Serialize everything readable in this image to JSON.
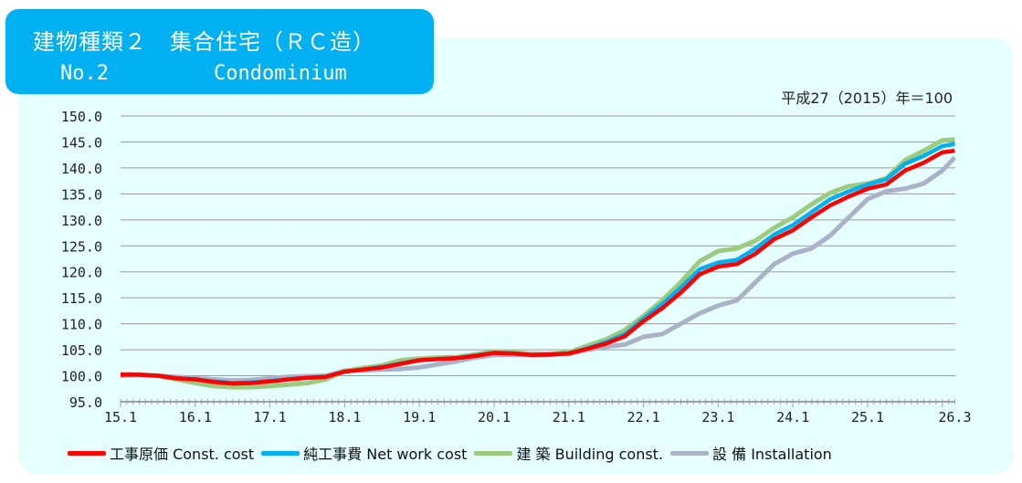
{
  "header": {
    "title_jp": "建物種類２　集合住宅（ＲＣ造）",
    "number": "No.2",
    "title_en": "Condominium"
  },
  "base_note": "平成27（2015）年＝100",
  "chart_data": {
    "type": "line",
    "ylim": [
      95,
      150
    ],
    "yticks": [
      "150.0",
      "145.0",
      "140.0",
      "135.0",
      "130.0",
      "125.0",
      "120.0",
      "115.0",
      "110.0",
      "105.0",
      "100.0",
      "95.0"
    ],
    "xticks": [
      "15.1",
      "16.1",
      "17.1",
      "18.1",
      "19.1",
      "20.1",
      "21.1",
      "22.1",
      "23.1",
      "24.1",
      "25.1",
      "26.3"
    ],
    "grid": true,
    "legend_position": "bottom",
    "x": [
      "15.1",
      "15.4",
      "15.7",
      "15.10",
      "16.1",
      "16.4",
      "16.7",
      "16.10",
      "17.1",
      "17.4",
      "17.7",
      "17.10",
      "18.1",
      "18.4",
      "18.7",
      "18.10",
      "19.1",
      "19.4",
      "19.7",
      "19.10",
      "20.1",
      "20.4",
      "20.7",
      "20.10",
      "21.1",
      "21.4",
      "21.7",
      "21.10",
      "22.1",
      "22.4",
      "22.7",
      "22.10",
      "23.1",
      "23.4",
      "23.7",
      "23.10",
      "24.1",
      "24.4",
      "24.7",
      "24.10",
      "25.1",
      "25.4",
      "25.7",
      "25.10",
      "26.1",
      "26.3"
    ],
    "series": [
      {
        "name": "工事原価 Const. cost",
        "color": "#FF0000",
        "values": [
          100.2,
          100.2,
          100,
          99.5,
          99.3,
          98.8,
          98.5,
          98.6,
          98.9,
          99.3,
          99.6,
          99.8,
          100.8,
          101.2,
          101.6,
          102.3,
          103,
          103.2,
          103.4,
          103.8,
          104.4,
          104.3,
          104,
          104.1,
          104.3,
          105.2,
          106.2,
          107.6,
          110.5,
          113,
          116,
          119.5,
          121,
          121.5,
          123.5,
          126.3,
          128,
          130.5,
          132.8,
          134.5,
          136,
          136.8,
          139.5,
          141,
          143,
          143.3
        ]
      },
      {
        "name": "純工事費 Net work cost",
        "color": "#00B0F0",
        "values": [
          100.2,
          100.2,
          100,
          99.5,
          99.3,
          98.9,
          98.6,
          98.7,
          99,
          99.3,
          99.6,
          99.8,
          100.8,
          101.2,
          101.7,
          102.4,
          103,
          103.2,
          103.4,
          103.9,
          104.4,
          104.3,
          104,
          104.1,
          104.3,
          105.3,
          106.5,
          108,
          111,
          113.8,
          117,
          120.5,
          121.8,
          122.3,
          124.5,
          127.2,
          129,
          131.5,
          134,
          135.5,
          136.8,
          137.8,
          140.8,
          142.3,
          144.2,
          144.6
        ]
      },
      {
        "name": "建 築 Building const.",
        "color": "#9BCB7D",
        "values": [
          100.3,
          100.2,
          100,
          99.3,
          98.6,
          98,
          97.8,
          97.8,
          98,
          98.3,
          98.6,
          99.3,
          100.9,
          101.5,
          102,
          103,
          103.3,
          103.5,
          103.6,
          104.1,
          104.7,
          104.5,
          104.2,
          104.2,
          104.5,
          105.8,
          107,
          108.8,
          111.5,
          114.5,
          118,
          122,
          124,
          124.5,
          126,
          128.5,
          130.5,
          133,
          135.2,
          136.5,
          137,
          138,
          141.5,
          143.3,
          145.3,
          145.5
        ]
      },
      {
        "name": "設 備 Installation",
        "color": "#AAB2C8",
        "values": [
          100,
          100.2,
          100,
          99.8,
          99.5,
          99.3,
          99.1,
          99.2,
          99.5,
          99.8,
          99.9,
          100,
          101,
          101,
          101.2,
          101.3,
          101.6,
          102.2,
          102.8,
          103.5,
          104,
          104,
          104,
          104,
          104.2,
          105,
          105.6,
          106,
          107.5,
          108,
          110,
          112,
          113.5,
          114.5,
          118,
          121.5,
          123.5,
          124.5,
          127,
          130.5,
          134,
          135.5,
          136,
          137,
          139.5,
          142
        ]
      }
    ]
  }
}
